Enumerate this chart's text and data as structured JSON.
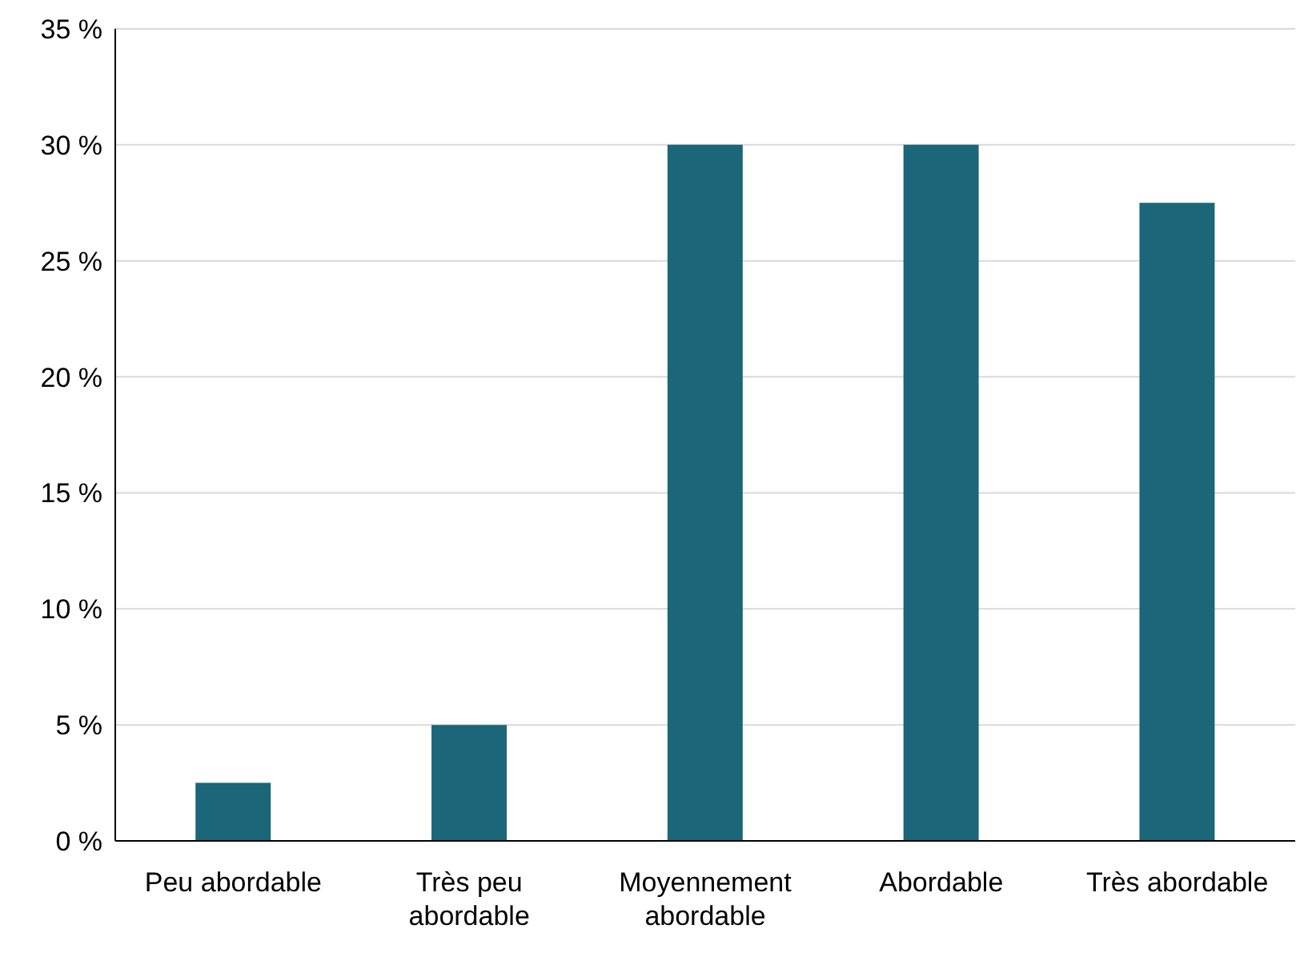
{
  "chart_data": {
    "type": "bar",
    "categories": [
      "Peu abordable",
      "Très peu abordable",
      "Moyennement abordable",
      "Abordable",
      "Très abordable"
    ],
    "values": [
      2.5,
      5,
      30,
      30,
      27.5
    ],
    "color": "#1b6678",
    "ylim": [
      0,
      35
    ],
    "yticks": [
      {
        "value": 0,
        "label": "0 %"
      },
      {
        "value": 5,
        "label": "5 %"
      },
      {
        "value": 10,
        "label": "10 %"
      },
      {
        "value": 15,
        "label": "15 %"
      },
      {
        "value": 20,
        "label": "20 %"
      },
      {
        "value": 25,
        "label": "25 %"
      },
      {
        "value": 30,
        "label": "30 %"
      },
      {
        "value": 35,
        "label": "35 %"
      }
    ],
    "grid": "y",
    "legend": false
  }
}
